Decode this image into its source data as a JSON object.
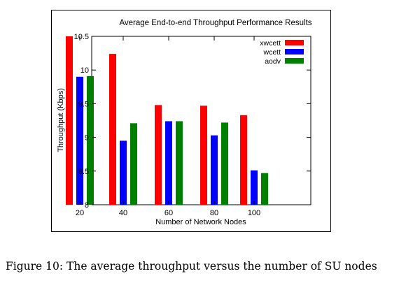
{
  "chart_data": {
    "type": "bar",
    "title": "Average End-to-end Throughput Performance Results",
    "xlabel": "Number of Network Nodes",
    "ylabel": "Throughput (Kbps)",
    "categories": [
      "20",
      "40",
      "60",
      "80",
      "100"
    ],
    "ylim": [
      8,
      10.5
    ],
    "yticks": [
      "8",
      "8.5",
      "9",
      "9.5",
      "10",
      "10.5"
    ],
    "grid": false,
    "legend_position": "top-right",
    "series": [
      {
        "name": "xwcett",
        "color": "#ff0000",
        "values": [
          10.5,
          10.24,
          9.48,
          9.47,
          9.33
        ]
      },
      {
        "name": "wcett",
        "color": "#0000ff",
        "values": [
          9.9,
          8.95,
          9.24,
          9.03,
          8.51
        ]
      },
      {
        "name": "aodv",
        "color": "#008000",
        "values": [
          9.91,
          9.21,
          9.24,
          9.22,
          8.47
        ]
      }
    ]
  },
  "caption": "Figure 10: The average throughput versus the number of SU nodes"
}
